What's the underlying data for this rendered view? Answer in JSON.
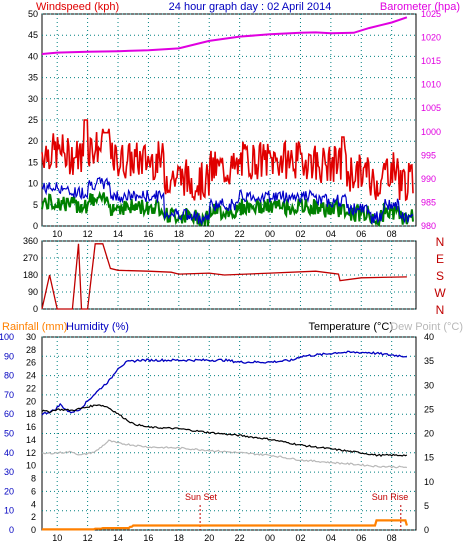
{
  "colors": {
    "windspeed": "#e00000",
    "wind_avg": "#0000c8",
    "wind_green": "#008000",
    "barometer": "#e000e0",
    "direction": "#c00000",
    "humidity": "#0000c0",
    "temperature": "#000000",
    "dewpoint": "#b8b8b8",
    "rainfall": "#ff8000",
    "axis_teal": "#008080",
    "axis_blue": "#0000c0",
    "grid": "#008080"
  },
  "top_header": {
    "windspeed_label": "Windspeed (kph)",
    "title": "24 hour graph day : 02 April 2014",
    "barometer_label": "Barometer (hpa)"
  },
  "bottom_header": {
    "rainfall_label": "Rainfall (mm)",
    "humidity_label": "Humidity (%)",
    "temperature_label": "Temperature (°C)",
    "dewpoint_label": "Dew Point (°C)"
  },
  "annotations": {
    "sunset": "Sun Set",
    "sunrise": "Sun Rise"
  },
  "x_ticks": [
    "10",
    "12",
    "14",
    "16",
    "18",
    "20",
    "22",
    "00",
    "02",
    "04",
    "06",
    "08"
  ],
  "chart_data": [
    {
      "type": "line",
      "panel": "wind_barometer",
      "series": [
        {
          "name": "Windspeed (kph)",
          "axis": "left",
          "summary": {
            "gust_peak": 25,
            "typical": [
              0,
              18
            ]
          }
        },
        {
          "name": "Barometer (hpa)",
          "axis": "right",
          "x": [
            9,
            10,
            12,
            14,
            16,
            18,
            19,
            20,
            22,
            24,
            26,
            27,
            28,
            29.5,
            30.5,
            32,
            33
          ],
          "values": [
            1016.5,
            1016.8,
            1017.0,
            1017.1,
            1017.3,
            1017.7,
            1018.5,
            1019.3,
            1020.2,
            1020.7,
            1021.0,
            1021.1,
            1020.9,
            1021.0,
            1022.0,
            1023.2,
            1024.3
          ]
        }
      ],
      "left_ylim": [
        0,
        50
      ],
      "left_ticks": [
        0,
        5,
        10,
        15,
        20,
        25,
        30,
        35,
        40,
        45,
        50
      ],
      "right_ylim": [
        980,
        1025
      ],
      "right_ticks": [
        980,
        985,
        990,
        995,
        1000,
        1005,
        1010,
        1015,
        1020,
        1025
      ]
    },
    {
      "type": "line",
      "panel": "wind_direction",
      "series": [
        {
          "name": "Wind direction",
          "x": [
            9,
            9.5,
            10,
            11,
            11.4,
            11.6,
            12.0,
            12.5,
            13,
            13.5,
            14,
            16,
            17.5,
            18,
            20,
            21,
            24,
            27,
            28.5,
            28.6,
            30,
            33
          ],
          "values": [
            0,
            180,
            0,
            0,
            345,
            0,
            0,
            345,
            345,
            215,
            205,
            200,
            195,
            185,
            190,
            180,
            190,
            200,
            185,
            150,
            165,
            170
          ]
        }
      ],
      "ylim": [
        0,
        360
      ],
      "ticks": [
        0,
        90,
        180,
        270,
        360
      ],
      "compass_labels": [
        "N",
        "W",
        "S",
        "E",
        "N"
      ]
    },
    {
      "type": "line",
      "panel": "temp_humidity",
      "series": [
        {
          "name": "Humidity (%)",
          "axis": "humidity",
          "x": [
            9,
            9.8,
            10.2,
            10.8,
            11.4,
            11.9,
            12.4,
            12.8,
            13.5,
            14,
            14.6,
            15.4,
            17,
            19,
            21,
            22,
            24,
            25.5,
            26,
            27.5,
            28.5,
            30.5,
            31.5,
            33
          ],
          "values": [
            60,
            62,
            65,
            61,
            62,
            66,
            70,
            73,
            78,
            84,
            87,
            88,
            88,
            88,
            88,
            87,
            87,
            88,
            90,
            91,
            92,
            92,
            91,
            90
          ]
        },
        {
          "name": "Temperature (°C)",
          "axis": "temperature",
          "x": [
            9,
            9.5,
            10,
            11,
            12,
            12.7,
            13.3,
            13.8,
            14.5,
            15,
            16,
            18,
            20,
            22,
            24,
            26,
            28,
            30,
            31,
            33
          ],
          "values": [
            24.7,
            24.5,
            25.0,
            24.8,
            25.5,
            26.0,
            25.5,
            24.5,
            23.0,
            22.0,
            21.3,
            21.0,
            20.2,
            19.6,
            18.8,
            17.6,
            16.8,
            16.0,
            15.5,
            15.5
          ]
        },
        {
          "name": "Dew Point (°C)",
          "axis": "temperature",
          "x": [
            9,
            10,
            11,
            11.5,
            12.5,
            13.4,
            14,
            15,
            16,
            18,
            20,
            22,
            24,
            26,
            28,
            30,
            31,
            33
          ],
          "values": [
            15.8,
            16.0,
            16.2,
            15.5,
            16.2,
            18.5,
            18.0,
            17.6,
            17.2,
            17.0,
            16.5,
            16.0,
            15.5,
            14.5,
            14.0,
            13.5,
            13.2,
            13.0
          ]
        },
        {
          "name": "Rainfall (mm)",
          "axis": "rainfall",
          "x": [
            9,
            12.5,
            13,
            14.8,
            15,
            30.9,
            31.0,
            32.8,
            33
          ],
          "values": [
            0.1,
            0.2,
            0.3,
            0.5,
            0.7,
            0.7,
            1.5,
            1.5,
            0.7
          ]
        }
      ],
      "humidity_ylim": [
        0,
        100
      ],
      "humidity_ticks": [
        0,
        10,
        20,
        30,
        40,
        50,
        60,
        70,
        80,
        90,
        100
      ],
      "rainfall_ylim": [
        0,
        30
      ],
      "rainfall_ticks": [
        0,
        2,
        4,
        6,
        8,
        10,
        12,
        14,
        16,
        18,
        20,
        22,
        24,
        26,
        28,
        30
      ],
      "temperature_ylim": [
        0,
        40
      ],
      "temperature_ticks": [
        0,
        5,
        10,
        15,
        20,
        25,
        30,
        35,
        40
      ]
    }
  ]
}
